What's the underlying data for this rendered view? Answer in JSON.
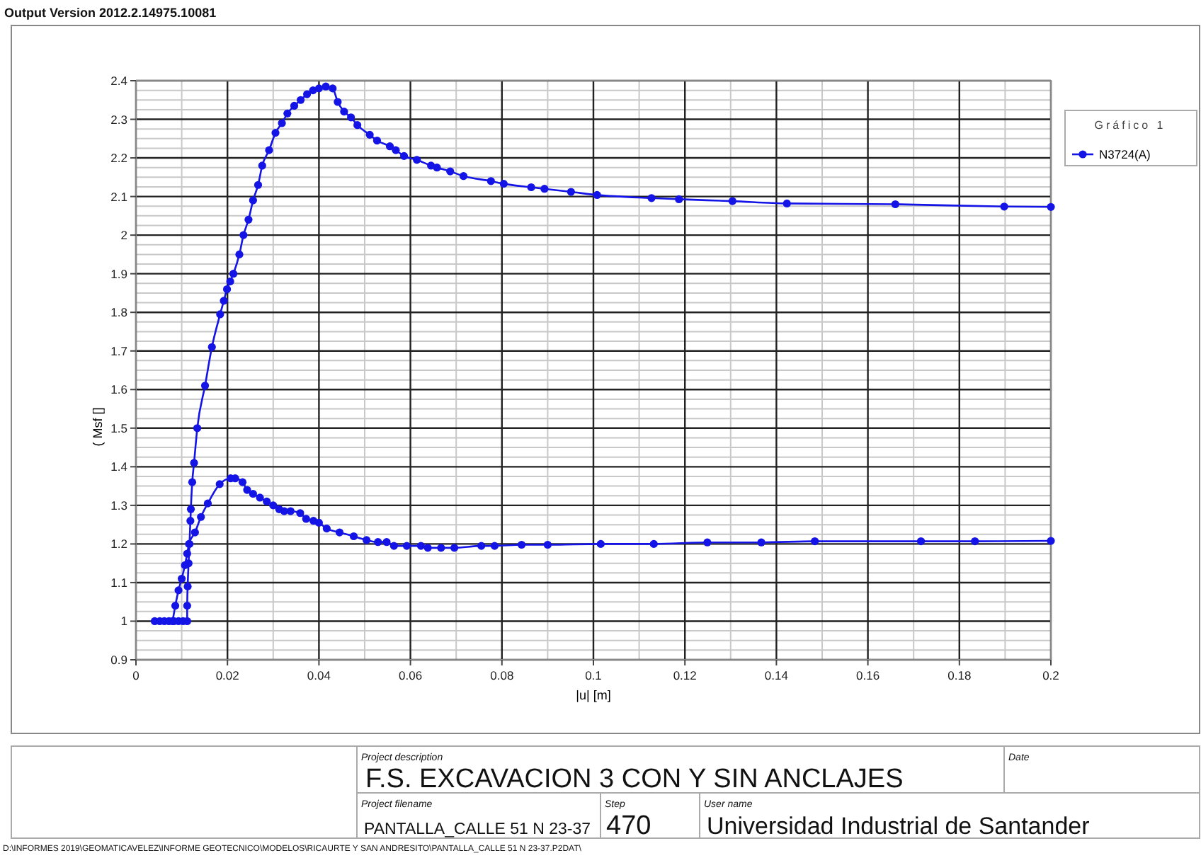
{
  "chart_data": {
    "type": "line",
    "xlabel": "|u| [m]",
    "ylabel": "( Msf []",
    "legend_title": "Gráfico 1",
    "legend": "top right",
    "grid": true,
    "marker": "circle",
    "line_style": "solid",
    "xlim": [
      0,
      0.2
    ],
    "xticks": [
      0,
      0.02,
      0.04,
      0.06,
      0.08,
      0.1,
      0.12,
      0.14,
      0.16,
      0.18,
      0.2
    ],
    "ylim": [
      0.9,
      2.4
    ],
    "yticks": [
      0.9,
      1,
      1.1,
      1.2,
      1.3,
      1.4,
      1.5,
      1.6,
      1.7,
      1.8,
      1.9,
      2,
      2.1,
      2.2,
      2.3,
      2.4
    ],
    "series": [
      {
        "name": "N3724(A)",
        "color": "#1414e6",
        "x": [
          0.0041,
          0.0052,
          0.0062,
          0.0072,
          0.0083,
          0.0093,
          0.0103,
          0.0112,
          0.0112,
          0.0113,
          0.0115,
          0.0117,
          0.0119,
          0.012,
          0.0123,
          0.0127,
          0.0134,
          0.0151,
          0.0166,
          0.0184,
          0.0192,
          0.0199,
          0.0206,
          0.0213,
          0.0226,
          0.0235,
          0.0246,
          0.0256,
          0.0267,
          0.0276,
          0.0291,
          0.0305,
          0.0319,
          0.0331,
          0.0346,
          0.036,
          0.0374,
          0.0387,
          0.04,
          0.0415,
          0.043,
          0.0441,
          0.0455,
          0.047,
          0.0484,
          0.0511,
          0.0527,
          0.0555,
          0.0568,
          0.0586,
          0.0614,
          0.0645,
          0.0658,
          0.0687,
          0.0716,
          0.0776,
          0.0804,
          0.0864,
          0.0893,
          0.0951,
          0.1008,
          0.1127,
          0.1187,
          0.1304,
          0.1423,
          0.166,
          0.1898,
          0.2
        ],
        "values": [
          1,
          1,
          1,
          1,
          1,
          1,
          1,
          1,
          1.04,
          1.09,
          1.15,
          1.2,
          1.26,
          1.29,
          1.36,
          1.41,
          1.5,
          1.61,
          1.71,
          1.795,
          1.83,
          1.86,
          1.88,
          1.9,
          1.95,
          2,
          2.04,
          2.09,
          2.13,
          2.18,
          2.22,
          2.265,
          2.29,
          2.315,
          2.335,
          2.35,
          2.365,
          2.375,
          2.38,
          2.385,
          2.38,
          2.345,
          2.32,
          2.305,
          2.285,
          2.26,
          2.245,
          2.23,
          2.22,
          2.205,
          2.195,
          2.18,
          2.175,
          2.165,
          2.153,
          2.14,
          2.133,
          2.124,
          2.12,
          2.112,
          2.104,
          2.096,
          2.093,
          2.088,
          2.082,
          2.08,
          2.074,
          2.073
        ]
      },
      {
        "color": "#1414e6",
        "x": [
          0.008,
          0.0086,
          0.0093,
          0.01,
          0.0107,
          0.0112,
          0.0116,
          0.0129,
          0.0142,
          0.0157,
          0.0183,
          0.0207,
          0.0217,
          0.0233,
          0.0243,
          0.0256,
          0.0271,
          0.0286,
          0.03,
          0.0313,
          0.0324,
          0.0338,
          0.0359,
          0.0372,
          0.0388,
          0.04,
          0.0417,
          0.0445,
          0.0476,
          0.0504,
          0.0529,
          0.0548,
          0.0564,
          0.0592,
          0.0623,
          0.0638,
          0.0667,
          0.0696,
          0.0755,
          0.0784,
          0.0843,
          0.09,
          0.1016,
          0.1132,
          0.1249,
          0.1367,
          0.1484,
          0.1716,
          0.1834,
          0.2
        ],
        "values": [
          1,
          1.04,
          1.08,
          1.11,
          1.145,
          1.175,
          1.2,
          1.23,
          1.27,
          1.305,
          1.355,
          1.37,
          1.37,
          1.36,
          1.34,
          1.33,
          1.32,
          1.31,
          1.3,
          1.29,
          1.285,
          1.285,
          1.28,
          1.265,
          1.26,
          1.255,
          1.24,
          1.23,
          1.22,
          1.21,
          1.205,
          1.205,
          1.195,
          1.195,
          1.195,
          1.19,
          1.19,
          1.19,
          1.195,
          1.195,
          1.198,
          1.198,
          1.2,
          1.2,
          1.204,
          1.204,
          1.207,
          1.207,
          1.207,
          1.208
        ]
      }
    ],
    "annotations": [
      "Output Version 2012.2.14975.10081",
      "Project description",
      "F.S. EXCAVACION 3 CON Y SIN ANCLAJES",
      "Date",
      "Project filename",
      "PANTALLA_CALLE 51 N 23-37",
      "Step",
      "470",
      "User name",
      "Universidad Industrial de Santander",
      "D:\\INFORMES 2019\\GEOMATICAVELEZ\\INFORME GEOTECNICO\\MODELOS\\RICAURTE Y SAN ANDRESITO\\PANTALLA_CALLE 51 N 23-37.P2DAT\\"
    ]
  }
}
